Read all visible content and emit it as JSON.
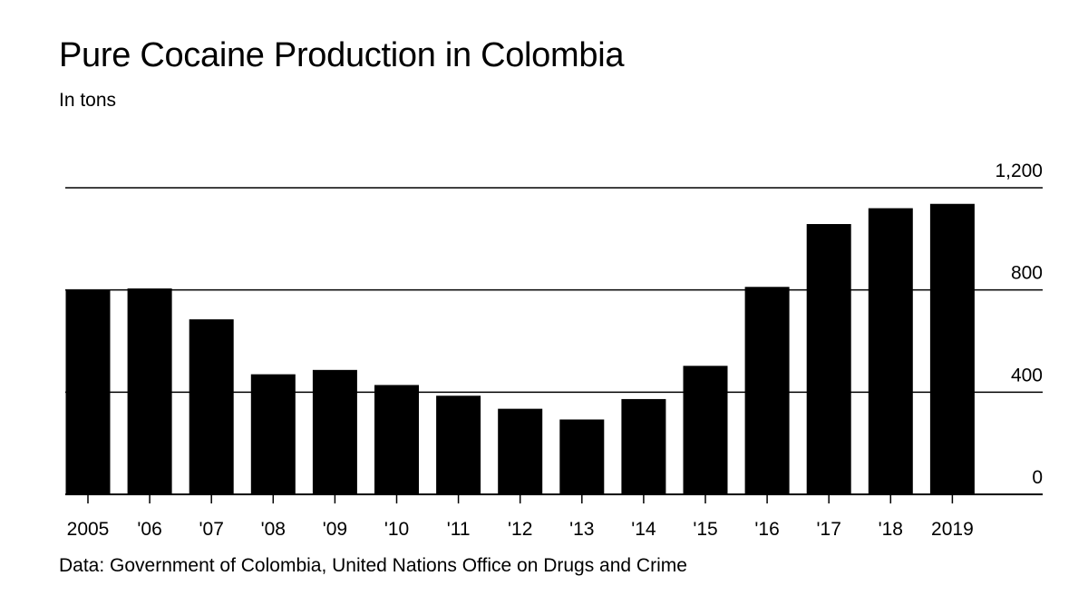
{
  "chart_data": {
    "type": "bar",
    "title": "Pure Cocaine Production in Colombia",
    "subtitle": "In tons",
    "source": "Data: Government of Colombia, United Nations Office on Drugs and Crime",
    "categories": [
      "2005",
      "'06",
      "'07",
      "'08",
      "'09",
      "'10",
      "'11",
      "'12",
      "'13",
      "'14",
      "'15",
      "'16",
      "'17",
      "'18",
      "2019"
    ],
    "values": [
      800,
      806,
      685,
      470,
      487,
      428,
      386,
      335,
      293,
      373,
      503,
      812,
      1058,
      1120,
      1137
    ],
    "ylim": [
      0,
      1200
    ],
    "yticks": [
      0,
      400,
      800,
      1200
    ],
    "ytick_labels": [
      "0",
      "400",
      "800",
      "1,200"
    ],
    "yaxis_position": "right",
    "grid": true,
    "bar_color": "#000000"
  }
}
